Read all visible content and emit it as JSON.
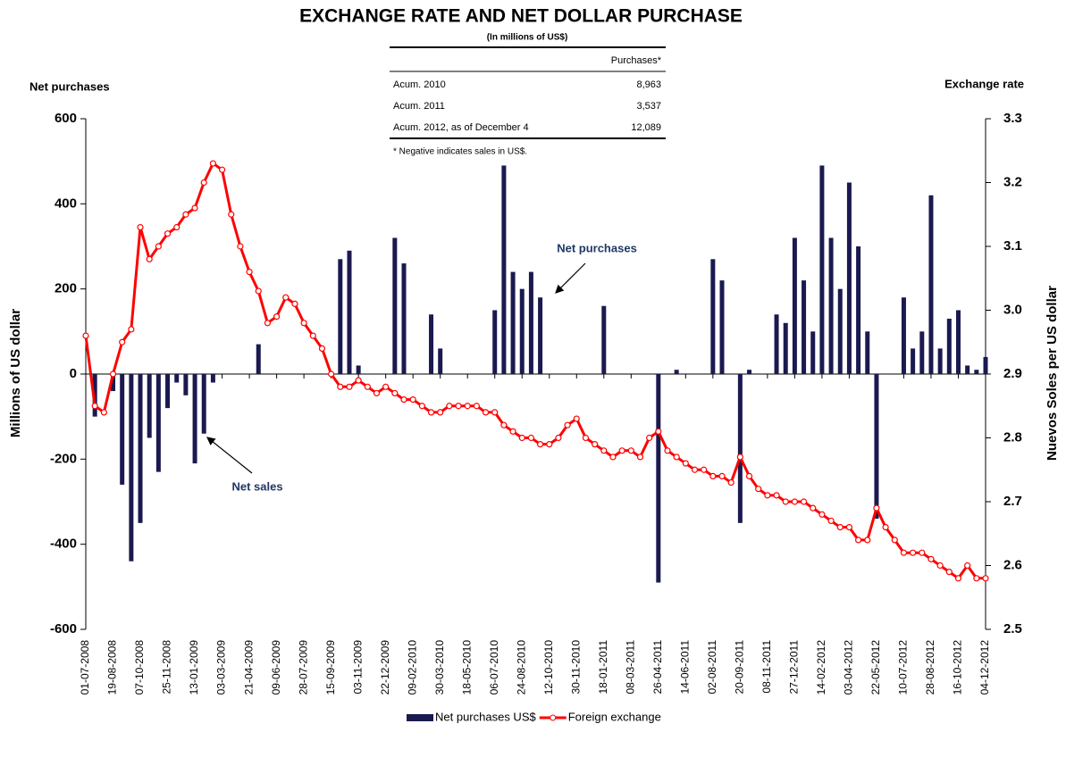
{
  "chart_data": {
    "type": "bar_line",
    "title": "EXCHANGE RATE AND NET DOLLAR PURCHASE",
    "y_title_top": "Net purchases",
    "y2_title_top": "Exchange rate",
    "ylabel": "Millions of US dollar",
    "y2label": "Nuevos Soles per US dollar",
    "inset_table": {
      "title": "(In millions of US$)",
      "header": "Purchases*",
      "rows": [
        [
          "Acum. 2010",
          "8,963"
        ],
        [
          "Acum. 2011",
          "3,537"
        ],
        [
          "Acum. 2012, as of December 4",
          "12,089"
        ]
      ],
      "note": "* Negative indicates sales in US$."
    },
    "annotations": [
      {
        "text": "Net purchases"
      },
      {
        "text": "Net sales"
      }
    ],
    "categories": [
      "01-07-2008",
      null,
      null,
      "19-08-2008",
      null,
      null,
      "07-10-2008",
      null,
      null,
      "25-11-2008",
      null,
      null,
      "13-01-2009",
      null,
      null,
      "03-03-2009",
      null,
      null,
      "21-04-2009",
      null,
      null,
      "09-06-2009",
      null,
      null,
      "28-07-2009",
      null,
      null,
      "15-09-2009",
      null,
      null,
      "03-11-2009",
      null,
      null,
      "22-12-2009",
      null,
      null,
      "09-02-2010",
      null,
      null,
      "30-03-2010",
      null,
      null,
      "18-05-2010",
      null,
      null,
      "06-07-2010",
      null,
      null,
      "24-08-2010",
      null,
      null,
      "12-10-2010",
      null,
      null,
      "30-11-2010",
      null,
      null,
      "18-01-2011",
      null,
      null,
      "08-03-2011",
      null,
      null,
      "26-04-2011",
      null,
      null,
      "14-06-2011",
      null,
      null,
      "02-08-2011",
      null,
      null,
      "20-09-2011",
      null,
      null,
      "08-11-2011",
      null,
      null,
      "27-12-2011",
      null,
      null,
      "14-02-2012",
      null,
      null,
      "03-04-2012",
      null,
      null,
      "22-05-2012",
      null,
      null,
      "10-07-2012",
      null,
      null,
      "28-08-2012",
      null,
      null,
      "16-10-2012",
      null,
      null,
      "04-12-2012"
    ],
    "series": [
      {
        "name": "Net purchases US$",
        "color": "#1a1a50",
        "axis": "y",
        "values": [
          0,
          -100,
          0,
          -40,
          -260,
          -440,
          -350,
          -150,
          -230,
          -80,
          -20,
          -50,
          -210,
          -140,
          -20,
          0,
          0,
          0,
          0,
          70,
          0,
          0,
          0,
          0,
          0,
          0,
          0,
          0,
          270,
          290,
          20,
          0,
          0,
          0,
          320,
          260,
          0,
          0,
          140,
          60,
          0,
          0,
          0,
          0,
          0,
          150,
          490,
          240,
          200,
          240,
          180,
          0,
          0,
          0,
          0,
          0,
          0,
          160,
          0,
          0,
          0,
          0,
          0,
          -490,
          0,
          10,
          0,
          0,
          0,
          270,
          220,
          0,
          -350,
          10,
          0,
          0,
          140,
          120,
          320,
          220,
          100,
          490,
          320,
          200,
          450,
          300,
          100,
          -340,
          0,
          0,
          180,
          60,
          100,
          420,
          60,
          130,
          150,
          20,
          10,
          40
        ]
      },
      {
        "name": "Foreign exchange",
        "color": "#ff0000",
        "axis": "y2",
        "values": [
          2.96,
          2.85,
          2.84,
          2.9,
          2.95,
          2.97,
          3.13,
          3.08,
          3.1,
          3.12,
          3.13,
          3.15,
          3.16,
          3.2,
          3.23,
          3.22,
          3.15,
          3.1,
          3.06,
          3.03,
          2.98,
          2.99,
          3.02,
          3.01,
          2.98,
          2.96,
          2.94,
          2.9,
          2.88,
          2.88,
          2.89,
          2.88,
          2.87,
          2.88,
          2.87,
          2.86,
          2.86,
          2.85,
          2.84,
          2.84,
          2.85,
          2.85,
          2.85,
          2.85,
          2.84,
          2.84,
          2.82,
          2.81,
          2.8,
          2.8,
          2.79,
          2.79,
          2.8,
          2.82,
          2.83,
          2.8,
          2.79,
          2.78,
          2.77,
          2.78,
          2.78,
          2.77,
          2.8,
          2.81,
          2.78,
          2.77,
          2.76,
          2.75,
          2.75,
          2.74,
          2.74,
          2.73,
          2.77,
          2.74,
          2.72,
          2.71,
          2.71,
          2.7,
          2.7,
          2.7,
          2.69,
          2.68,
          2.67,
          2.66,
          2.66,
          2.64,
          2.64,
          2.69,
          2.66,
          2.64,
          2.62,
          2.62,
          2.62,
          2.61,
          2.6,
          2.59,
          2.58,
          2.6,
          2.58,
          2.58
        ]
      }
    ],
    "ylim": [
      -600,
      600
    ],
    "yticks": [
      -600,
      -400,
      -200,
      0,
      200,
      400,
      600
    ],
    "y2lim": [
      2.5,
      3.3
    ],
    "y2ticks": [
      2.5,
      2.6,
      2.7,
      2.8,
      2.9,
      {
        "value": 3,
        "label": "3.0"
      },
      3.1,
      3.2,
      3.3
    ],
    "legend": "bottom"
  }
}
